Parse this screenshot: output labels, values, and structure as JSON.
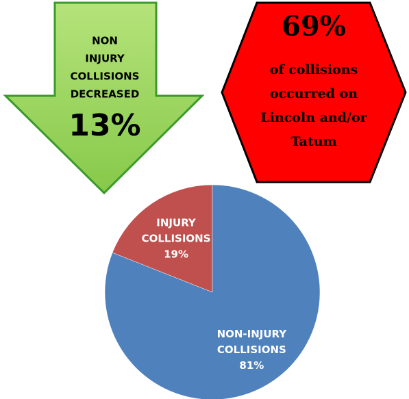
{
  "arrow": {
    "lines": [
      "NON",
      "INJURY",
      "COLLISIONS",
      "DECREASED"
    ],
    "figure": "13%"
  },
  "hexagon": {
    "figure": "69%",
    "lines": [
      "of collisions",
      "occurred on",
      "Lincoln and/or",
      "Tatum"
    ]
  },
  "chart_data": {
    "type": "pie",
    "categories": [
      "INJURY COLLISIONS",
      "NON-INJURY COLLISIONS"
    ],
    "values": [
      19,
      81
    ],
    "value_labels": [
      "19%",
      "81%"
    ],
    "colors": [
      "#c0504d",
      "#4f81bd"
    ]
  }
}
